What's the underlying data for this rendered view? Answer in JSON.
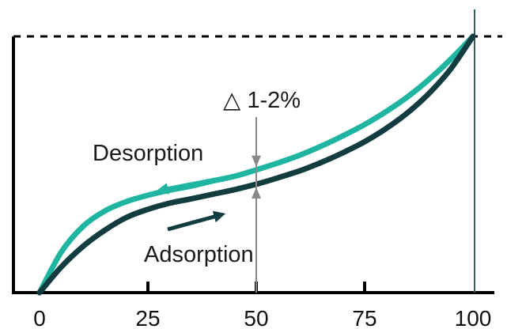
{
  "colors": {
    "desorption": "#1fb5a0",
    "adsorption": "#123c40",
    "axis": "#000000",
    "marker": "#888888",
    "right_line": "#2f5f5f"
  },
  "chart_data": {
    "type": "line",
    "title": "",
    "xlabel": "",
    "ylabel": "",
    "xlim": [
      0,
      100
    ],
    "ylim": [
      0,
      100
    ],
    "x_ticks": [
      0,
      25,
      50,
      75,
      100
    ],
    "x_tick_labels": [
      "0",
      "25",
      "50",
      "75",
      "100"
    ],
    "reference_line": {
      "type": "dashed-horizontal",
      "y": 100
    },
    "series": [
      {
        "name": "Desorption",
        "direction": "decreasing-x",
        "x": [
          0,
          5,
          10,
          15,
          20,
          25,
          30,
          35,
          40,
          45,
          50,
          55,
          60,
          65,
          70,
          75,
          80,
          85,
          90,
          95,
          100
        ],
        "y": [
          0,
          15.8,
          25.8,
          31.8,
          35.5,
          38,
          40,
          41.6,
          43.6,
          45.4,
          47.9,
          50.6,
          53.6,
          57.2,
          61.2,
          65.6,
          70.7,
          76.5,
          83.4,
          91.3,
          100
        ]
      },
      {
        "name": "Adsorption",
        "direction": "increasing-x",
        "x": [
          0,
          5,
          10,
          15,
          20,
          25,
          30,
          35,
          40,
          45,
          50,
          55,
          60,
          65,
          70,
          75,
          80,
          85,
          90,
          95,
          100
        ],
        "y": [
          0,
          10,
          18,
          24.3,
          29.3,
          32.5,
          34.9,
          36.6,
          38.4,
          40.2,
          42.3,
          44.8,
          47.5,
          50.8,
          54.6,
          58.9,
          64.1,
          70.3,
          78,
          87.6,
          100
        ]
      }
    ],
    "annotations": [
      {
        "text": "△ 1-2%",
        "x": 50
      }
    ]
  }
}
